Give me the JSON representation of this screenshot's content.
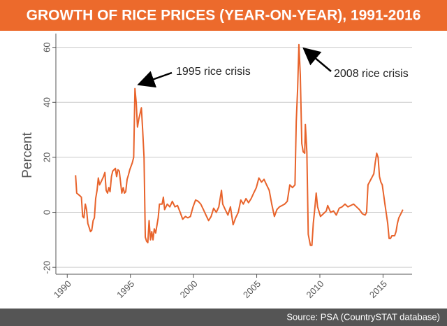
{
  "chart_data": {
    "type": "line",
    "title": "GROWTH OF RICE PRICES (YEAR-ON-YEAR), 1991-2016",
    "y_label": "Percent",
    "source": "Source: PSA (CountrySTAT database)",
    "annotations": [
      "1995 rice crisis",
      "2008 rice crisis"
    ],
    "color": "#e8632b",
    "grid": true,
    "xlim": [
      1989.1,
      2017.3
    ],
    "ylim": [
      -22.5,
      65
    ],
    "xticks": [
      1990,
      1995,
      2000,
      2005,
      2010,
      2015
    ],
    "yticks": [
      -20,
      0,
      20,
      40,
      60
    ],
    "x": [
      1990.66,
      1990.75,
      1991.01,
      1991.12,
      1991.22,
      1991.32,
      1991.43,
      1991.53,
      1991.63,
      1991.84,
      1991.94,
      1992.05,
      1992.15,
      1992.25,
      1992.36,
      1992.46,
      1992.56,
      1992.67,
      1992.87,
      1992.98,
      1993.08,
      1993.19,
      1993.29,
      1993.39,
      1993.5,
      1993.6,
      1993.81,
      1993.91,
      1994.01,
      1994.12,
      1994.22,
      1994.32,
      1994.43,
      1994.53,
      1994.63,
      1994.74,
      1994.84,
      1994.95,
      1995.15,
      1995.26,
      1995.36,
      1995.46,
      1995.56,
      1995.67,
      1995.77,
      1995.87,
      1995.97,
      1996.08,
      1996.18,
      1996.28,
      1996.38,
      1996.48,
      1996.59,
      1996.69,
      1996.79,
      1996.89,
      1997.0,
      1997.2,
      1997.3,
      1997.51,
      1997.61,
      1997.71,
      1997.92,
      1998.12,
      1998.32,
      1998.53,
      1998.73,
      1998.94,
      1999.14,
      1999.35,
      1999.55,
      1999.75,
      1999.96,
      2000.16,
      2000.37,
      2000.57,
      2000.78,
      2000.98,
      2001.19,
      2001.39,
      2001.59,
      2001.8,
      2002.0,
      2002.21,
      2002.31,
      2002.51,
      2002.72,
      2002.92,
      2003.13,
      2003.33,
      2003.54,
      2003.74,
      2003.94,
      2004.15,
      2004.35,
      2004.56,
      2004.76,
      2004.97,
      2005.17,
      2005.38,
      2005.58,
      2005.78,
      2005.99,
      2006.19,
      2006.4,
      2006.6,
      2006.8,
      2007.01,
      2007.21,
      2007.42,
      2007.62,
      2007.83,
      2008.03,
      2008.13,
      2008.24,
      2008.34,
      2008.45,
      2008.57,
      2008.68,
      2008.8,
      2008.85,
      2008.97,
      2009.08,
      2009.25,
      2009.37,
      2009.48,
      2009.59,
      2009.71,
      2009.82,
      2010.05,
      2010.28,
      2010.51,
      2010.62,
      2010.85,
      2011.08,
      2011.3,
      2011.53,
      2011.76,
      2011.99,
      2012.22,
      2012.44,
      2012.67,
      2012.9,
      2013.13,
      2013.36,
      2013.58,
      2013.7,
      2013.81,
      2014.04,
      2014.27,
      2014.38,
      2014.5,
      2014.61,
      2014.72,
      2014.83,
      2014.94,
      2015.15,
      2015.37,
      2015.48,
      2015.59,
      2015.7,
      2015.92,
      2016.03,
      2016.14,
      2016.25,
      2016.36,
      2016.47,
      2016.57
    ],
    "values": [
      13.5,
      7,
      6,
      5.5,
      -1.5,
      -2,
      3,
      1,
      -4,
      -7,
      -6.5,
      -3,
      -2,
      5,
      8,
      12.5,
      10,
      11,
      13,
      14.5,
      8,
      7,
      9,
      7.5,
      13,
      15,
      16,
      13,
      15.5,
      15,
      11,
      7,
      9,
      7,
      7.5,
      12,
      13.5,
      15.5,
      18,
      20,
      45,
      40,
      31,
      34,
      36,
      38,
      30,
      20,
      -9,
      -10.5,
      -11,
      -3,
      -10,
      -7,
      -10,
      -6,
      -7.5,
      -2,
      3,
      3,
      5.5,
      1,
      3,
      2,
      4,
      2,
      2.5,
      0,
      -2.5,
      -1.5,
      -2,
      -1.5,
      2,
      4.5,
      4,
      3,
      1,
      -1,
      -3,
      -1.5,
      1.5,
      0,
      2,
      8,
      3,
      1,
      -1,
      2,
      -4.5,
      -2,
      0,
      4.5,
      3,
      5,
      3.5,
      5,
      7,
      9,
      12.5,
      11,
      12,
      10,
      8,
      3,
      -1.5,
      1,
      2,
      2.5,
      3,
      4,
      10,
      9,
      10,
      33,
      45,
      61,
      50,
      25,
      22,
      21.5,
      32,
      22,
      -8,
      -12,
      -12,
      -4,
      1,
      7,
      2,
      -1.5,
      -0.5,
      0.5,
      2.5,
      0,
      0.5,
      -1,
      1.5,
      2,
      3,
      2,
      2.5,
      3,
      2,
      1,
      -0.5,
      -1,
      0,
      10,
      12,
      14,
      18,
      21.5,
      20,
      13,
      11,
      10,
      3,
      -4,
      -9.5,
      -9.5,
      -8.5,
      -8.5,
      -7,
      -4,
      -2,
      -1,
      0,
      1
    ]
  }
}
